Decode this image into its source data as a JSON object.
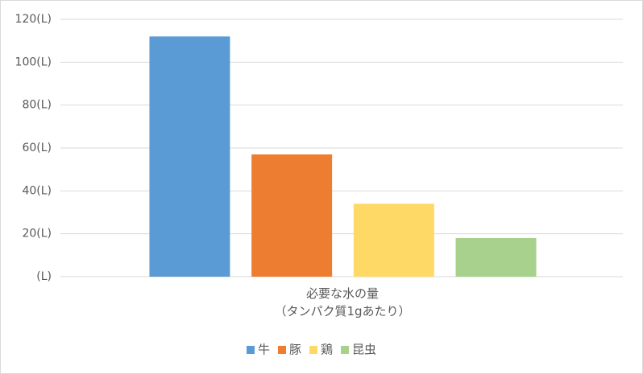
{
  "chart_data": {
    "type": "bar",
    "categories": [
      "必要な水の量\n（タンパク質1gあたり）"
    ],
    "series": [
      {
        "name": "牛",
        "color": "#5b9bd5",
        "values": [
          112
        ]
      },
      {
        "name": "豚",
        "color": "#ed7d31",
        "values": [
          57
        ]
      },
      {
        "name": "鶏",
        "color": "#ffd966",
        "values": [
          34
        ]
      },
      {
        "name": "昆虫",
        "color": "#a9d18e",
        "values": [
          18
        ]
      }
    ],
    "ylim": [
      0,
      120
    ],
    "yticks": [
      {
        "value": 0,
        "label": "(L)"
      },
      {
        "value": 20,
        "label": "20(L)"
      },
      {
        "value": 40,
        "label": "40(L)"
      },
      {
        "value": 60,
        "label": "60(L)"
      },
      {
        "value": 80,
        "label": "80(L)"
      },
      {
        "value": 100,
        "label": "100(L)"
      },
      {
        "value": 120,
        "label": "120(L)"
      }
    ],
    "grid": true,
    "legend": "bottom"
  }
}
